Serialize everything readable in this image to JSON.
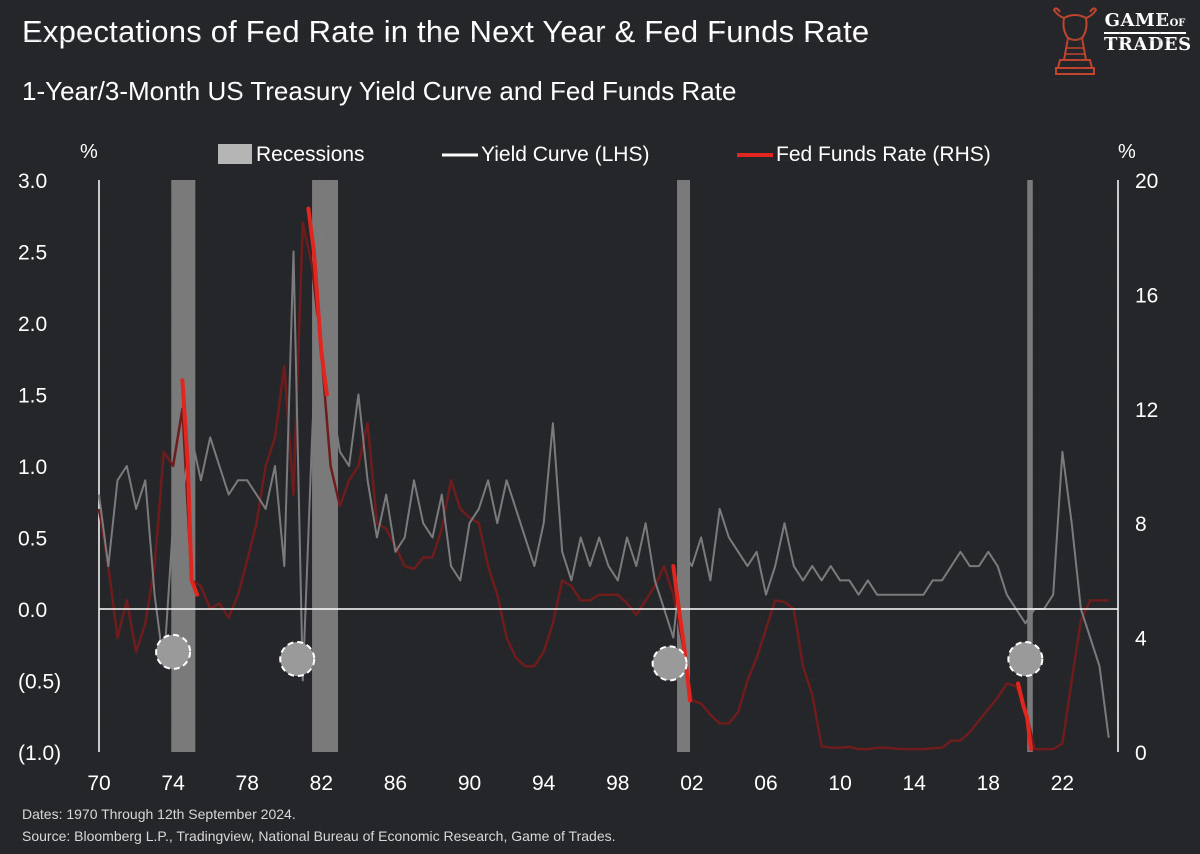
{
  "header": {
    "title": "Expectations of Fed Rate in the Next Year  & Fed Funds Rate",
    "subtitle": "1-Year/3-Month US Treasury Yield Curve and Fed Funds Rate"
  },
  "logo": {
    "line1": "GAME",
    "line2": "OF",
    "line3": "TRADES"
  },
  "footer": {
    "dates": "Dates: 1970 Through 12th September 2024.",
    "source": "Source: Bloomberg L.P., Tradingview, National Bureau of Economic Research, Game of Trades."
  },
  "colors": {
    "background": "#25262a",
    "grid": "#33353b",
    "recession": "#8a8a8a",
    "yield_curve": "#7b7b7d",
    "fed_funds_dark": "#6e1c1c",
    "fed_funds_highlight": "#e0261f",
    "zero_line": "#ffffff"
  },
  "chart_data": {
    "type": "line",
    "title": "1-Year/3-Month US Treasury Yield Curve and Fed Funds Rate",
    "left_axis_label": "%",
    "right_axis_label": "%",
    "left_ylim": [
      -1.0,
      3.0
    ],
    "right_ylim": [
      0,
      20
    ],
    "left_ticks": [
      "3.0",
      "2.5",
      "2.0",
      "1.5",
      "1.0",
      "0.5",
      "0.0",
      "(0.5)",
      "(1.0)"
    ],
    "left_tick_values": [
      3.0,
      2.5,
      2.0,
      1.5,
      1.0,
      0.5,
      0.0,
      -0.5,
      -1.0
    ],
    "right_ticks": [
      "20",
      "16",
      "12",
      "8",
      "4",
      "0"
    ],
    "right_tick_values": [
      20,
      16,
      12,
      8,
      4,
      0
    ],
    "xlim": [
      1970,
      2025
    ],
    "x_ticks": [
      "70",
      "74",
      "78",
      "82",
      "86",
      "90",
      "94",
      "98",
      "02",
      "06",
      "10",
      "14",
      "18",
      "22"
    ],
    "x_tick_values": [
      1970,
      1974,
      1978,
      1982,
      1986,
      1990,
      1994,
      1998,
      2002,
      2006,
      2010,
      2014,
      2018,
      2022
    ],
    "legend": [
      "Recessions",
      "Yield Curve (LHS)",
      "Fed Funds Rate (RHS)"
    ],
    "recessions": [
      [
        1973.9,
        1975.2
      ],
      [
        1981.5,
        1982.9
      ],
      [
        2001.2,
        2001.9
      ],
      [
        2020.1,
        2020.4
      ]
    ],
    "yield_curve": {
      "name": "Yield Curve (LHS)",
      "x": [
        1970.0,
        1970.5,
        1971.0,
        1971.5,
        1972.0,
        1972.5,
        1973.0,
        1973.5,
        1974.0,
        1974.5,
        1975.0,
        1975.5,
        1976.0,
        1976.5,
        1977.0,
        1977.5,
        1978.0,
        1978.5,
        1979.0,
        1979.5,
        1980.0,
        1980.5,
        1981.0,
        1981.5,
        1982.0,
        1982.5,
        1983.0,
        1983.5,
        1984.0,
        1984.5,
        1985.0,
        1985.5,
        1986.0,
        1986.5,
        1987.0,
        1987.5,
        1988.0,
        1988.5,
        1989.0,
        1989.5,
        1990.0,
        1990.5,
        1991.0,
        1991.5,
        1992.0,
        1992.5,
        1993.0,
        1993.5,
        1994.0,
        1994.5,
        1995.0,
        1995.5,
        1996.0,
        1996.5,
        1997.0,
        1997.5,
        1998.0,
        1998.5,
        1999.0,
        1999.5,
        2000.0,
        2000.5,
        2001.0,
        2001.5,
        2002.0,
        2002.5,
        2003.0,
        2003.5,
        2004.0,
        2004.5,
        2005.0,
        2005.5,
        2006.0,
        2006.5,
        2007.0,
        2007.5,
        2008.0,
        2008.5,
        2009.0,
        2009.5,
        2010.0,
        2010.5,
        2011.0,
        2011.5,
        2012.0,
        2012.5,
        2013.0,
        2013.5,
        2014.0,
        2014.5,
        2015.0,
        2015.5,
        2016.0,
        2016.5,
        2017.0,
        2017.5,
        2018.0,
        2018.5,
        2019.0,
        2019.5,
        2020.0,
        2020.5,
        2021.0,
        2021.5,
        2022.0,
        2022.5,
        2023.0,
        2023.5,
        2024.0,
        2024.5
      ],
      "values": [
        0.8,
        0.3,
        0.9,
        1.0,
        0.7,
        0.9,
        0.1,
        -0.4,
        0.6,
        0.8,
        1.2,
        0.9,
        1.2,
        1.0,
        0.8,
        0.9,
        0.9,
        0.8,
        0.7,
        1.0,
        0.3,
        2.5,
        -0.5,
        1.2,
        2.7,
        1.5,
        1.1,
        1.0,
        1.5,
        0.9,
        0.5,
        0.8,
        0.4,
        0.5,
        0.9,
        0.6,
        0.5,
        0.8,
        0.3,
        0.2,
        0.6,
        0.7,
        0.9,
        0.6,
        0.9,
        0.7,
        0.5,
        0.3,
        0.6,
        1.3,
        0.4,
        0.2,
        0.5,
        0.3,
        0.5,
        0.3,
        0.2,
        0.5,
        0.3,
        0.6,
        0.2,
        0.0,
        -0.2,
        0.4,
        0.3,
        0.5,
        0.2,
        0.7,
        0.5,
        0.4,
        0.3,
        0.4,
        0.1,
        0.3,
        0.6,
        0.3,
        0.2,
        0.3,
        0.2,
        0.3,
        0.2,
        0.2,
        0.1,
        0.2,
        0.1,
        0.1,
        0.1,
        0.1,
        0.1,
        0.1,
        0.2,
        0.2,
        0.3,
        0.4,
        0.3,
        0.3,
        0.4,
        0.3,
        0.1,
        0.0,
        -0.1,
        0.0,
        0.0,
        0.1,
        1.1,
        0.6,
        0.0,
        -0.2,
        -0.4,
        -0.9
      ]
    },
    "fed_funds_rate": {
      "name": "Fed Funds Rate (RHS)",
      "x": [
        1970.0,
        1970.5,
        1971.0,
        1971.5,
        1972.0,
        1972.5,
        1973.0,
        1973.5,
        1974.0,
        1974.5,
        1975.0,
        1975.5,
        1976.0,
        1976.5,
        1977.0,
        1977.5,
        1978.0,
        1978.5,
        1979.0,
        1979.5,
        1980.0,
        1980.5,
        1981.0,
        1981.5,
        1982.0,
        1982.5,
        1983.0,
        1983.5,
        1984.0,
        1984.5,
        1985.0,
        1985.5,
        1986.0,
        1986.5,
        1987.0,
        1987.5,
        1988.0,
        1988.5,
        1989.0,
        1989.5,
        1990.0,
        1990.5,
        1991.0,
        1991.5,
        1992.0,
        1992.5,
        1993.0,
        1993.5,
        1994.0,
        1994.5,
        1995.0,
        1995.5,
        1996.0,
        1996.5,
        1997.0,
        1997.5,
        1998.0,
        1998.5,
        1999.0,
        1999.5,
        2000.0,
        2000.5,
        2001.0,
        2001.5,
        2002.0,
        2002.5,
        2003.0,
        2003.5,
        2004.0,
        2004.5,
        2005.0,
        2005.5,
        2006.0,
        2006.5,
        2007.0,
        2007.5,
        2008.0,
        2008.5,
        2009.0,
        2009.5,
        2010.0,
        2010.5,
        2011.0,
        2011.5,
        2012.0,
        2012.5,
        2013.0,
        2013.5,
        2014.0,
        2014.5,
        2015.0,
        2015.5,
        2016.0,
        2016.5,
        2017.0,
        2017.5,
        2018.0,
        2018.5,
        2019.0,
        2019.5,
        2020.0,
        2020.5,
        2021.0,
        2021.5,
        2022.0,
        2022.5,
        2023.0,
        2023.5,
        2024.0,
        2024.5
      ],
      "values": [
        8.5,
        6.5,
        4.0,
        5.3,
        3.5,
        4.5,
        6.5,
        10.5,
        10.0,
        12.0,
        6.0,
        5.8,
        5.0,
        5.2,
        4.7,
        5.5,
        6.7,
        8.0,
        10.0,
        11.0,
        13.5,
        9.0,
        18.5,
        17.0,
        14.0,
        10.0,
        8.6,
        9.5,
        10.0,
        11.5,
        8.0,
        7.8,
        7.2,
        6.5,
        6.4,
        6.8,
        6.8,
        7.8,
        9.5,
        8.5,
        8.2,
        8.0,
        6.5,
        5.5,
        4.0,
        3.3,
        3.0,
        3.0,
        3.5,
        4.5,
        6.0,
        5.8,
        5.3,
        5.3,
        5.5,
        5.5,
        5.5,
        5.2,
        4.8,
        5.3,
        5.8,
        6.5,
        5.5,
        3.8,
        1.8,
        1.7,
        1.3,
        1.0,
        1.0,
        1.4,
        2.5,
        3.3,
        4.3,
        5.3,
        5.25,
        5.0,
        3.0,
        2.0,
        0.2,
        0.15,
        0.15,
        0.18,
        0.1,
        0.1,
        0.15,
        0.15,
        0.12,
        0.1,
        0.1,
        0.1,
        0.13,
        0.15,
        0.4,
        0.4,
        0.7,
        1.1,
        1.5,
        1.9,
        2.4,
        2.3,
        1.5,
        0.1,
        0.1,
        0.1,
        0.3,
        2.5,
        4.6,
        5.3,
        5.3,
        5.3
      ]
    },
    "fed_funds_highlight_segments": [
      {
        "x": [
          1974.5,
          1974.8,
          1975.0,
          1975.3
        ],
        "values": [
          13.0,
          10.0,
          6.0,
          5.5
        ]
      },
      {
        "x": [
          1981.3,
          1981.6,
          1982.0,
          1982.3
        ],
        "values": [
          19.0,
          17.5,
          14.0,
          12.5
        ]
      },
      {
        "x": [
          2001.0,
          2001.3,
          2001.6,
          2001.9
        ],
        "values": [
          6.5,
          5.0,
          3.6,
          1.8
        ]
      },
      {
        "x": [
          2019.6,
          2019.9,
          2020.1,
          2020.3
        ],
        "values": [
          2.4,
          1.6,
          1.2,
          0.1
        ]
      }
    ],
    "inversion_markers": [
      {
        "x": 1974.0,
        "value": -0.3
      },
      {
        "x": 1980.7,
        "value": -0.35
      },
      {
        "x": 2000.8,
        "value": -0.38
      },
      {
        "x": 2020.0,
        "value": -0.35
      }
    ]
  }
}
